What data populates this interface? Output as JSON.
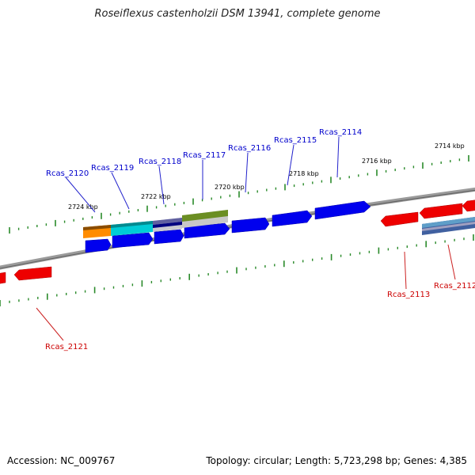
{
  "title": "Roseiflexus castenholzii DSM 13941, complete genome",
  "footer": {
    "accession": "Accession: NC_009767",
    "summary": "Topology: circular; Length: 5,723,298 bp; Genes: 4,385"
  },
  "colors": {
    "backbone": "#808080",
    "tick": "#2a8a2a",
    "forward_gene": "#0000ee",
    "reverse_gene": "#ee0000",
    "forward_label": "#0000cc",
    "reverse_label": "#cc0000"
  },
  "position_labels": [
    "2724 kbp",
    "2722 kbp",
    "2720 kbp",
    "2718 kbp",
    "2716 kbp",
    "2714 kbp"
  ],
  "forward_genes": [
    "Rcas_2120",
    "Rcas_2119",
    "Rcas_2118",
    "Rcas_2117",
    "Rcas_2116",
    "Rcas_2115",
    "Rcas_2114"
  ],
  "reverse_genes": [
    "Rcas_2121",
    "Rcas_2113",
    "Rcas_2112"
  ]
}
